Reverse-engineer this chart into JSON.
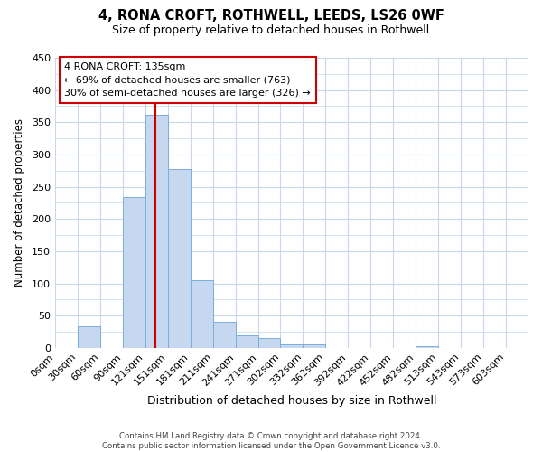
{
  "title": "4, RONA CROFT, ROTHWELL, LEEDS, LS26 0WF",
  "subtitle": "Size of property relative to detached houses in Rothwell",
  "xlabel": "Distribution of detached houses by size in Rothwell",
  "ylabel": "Number of detached properties",
  "bin_labels": [
    "0sqm",
    "30sqm",
    "60sqm",
    "90sqm",
    "121sqm",
    "151sqm",
    "181sqm",
    "211sqm",
    "241sqm",
    "271sqm",
    "302sqm",
    "332sqm",
    "362sqm",
    "392sqm",
    "422sqm",
    "452sqm",
    "482sqm",
    "513sqm",
    "543sqm",
    "573sqm",
    "603sqm"
  ],
  "bar_heights": [
    0,
    33,
    0,
    234,
    362,
    278,
    105,
    40,
    20,
    15,
    5,
    5,
    0,
    0,
    0,
    0,
    2,
    0,
    0,
    0,
    0
  ],
  "bar_color": "#c5d8f0",
  "bar_edge_color": "#7aaedd",
  "vline_color": "#cc0000",
  "ylim": [
    0,
    450
  ],
  "yticks": [
    0,
    50,
    100,
    150,
    200,
    250,
    300,
    350,
    400,
    450
  ],
  "annotation_title": "4 RONA CROFT: 135sqm",
  "annotation_line1": "← 69% of detached houses are smaller (763)",
  "annotation_line2": "30% of semi-detached houses are larger (326) →",
  "annotation_box_color": "#cc0000",
  "footer_line1": "Contains HM Land Registry data © Crown copyright and database right 2024.",
  "footer_line2": "Contains public sector information licensed under the Open Government Licence v3.0.",
  "background_color": "#ffffff",
  "grid_color": "#c8d8ec"
}
